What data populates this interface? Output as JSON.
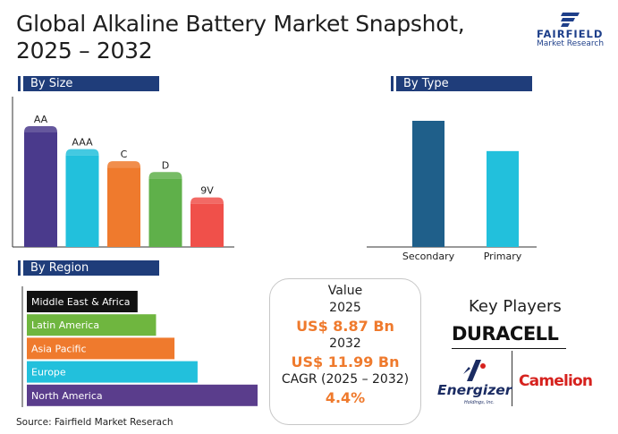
{
  "header": {
    "title_line1": "Global Alkaline Battery Market Snapshot,",
    "title_line2": "2025 – 2032"
  },
  "logo": {
    "name": "FAIRFIELD",
    "sub": "Market Research",
    "color": "#1e3f8a"
  },
  "sections": {
    "by_size": "By Size",
    "by_type": "By Type",
    "by_region": "By Region"
  },
  "chart_data": [
    {
      "type": "bar",
      "title": "By Size",
      "categories": [
        "AA",
        "AAA",
        "C",
        "D",
        "9V"
      ],
      "values": [
        100,
        81,
        71,
        62,
        41
      ],
      "colors": [
        "#4a3a8c",
        "#22c0dc",
        "#ef7a2d",
        "#5fb04a",
        "#f0504a"
      ],
      "ylim": [
        0,
        100
      ],
      "grid": false,
      "legend": "none"
    },
    {
      "type": "bar",
      "title": "By Type",
      "categories": [
        "Secondary",
        "Primary"
      ],
      "values": [
        100,
        76
      ],
      "colors": [
        "#1f5f8a",
        "#22c0dc"
      ],
      "ylim": [
        0,
        100
      ],
      "grid": false,
      "legend": "none"
    },
    {
      "type": "bar",
      "orientation": "horizontal",
      "title": "By Region",
      "categories": [
        "Middle East & Africa",
        "Latin America",
        "Asia Pacific",
        "Europe",
        "North America"
      ],
      "values": [
        48,
        56,
        64,
        74,
        100
      ],
      "colors": [
        "#111111",
        "#6fb63f",
        "#ef7a2d",
        "#22c0dc",
        "#5a3d8c"
      ],
      "xlim": [
        0,
        100
      ],
      "grid": false,
      "legend": "none"
    }
  ],
  "value_box": {
    "label": "Value",
    "year_start": "2025",
    "value_start": "US$ 8.87 Bn",
    "year_end": "2032",
    "value_end": "US$ 11.99 Bn",
    "cagr_label": "CAGR (2025 – 2032)",
    "cagr_value": "4.4%",
    "accent": "#ef7a2d"
  },
  "key_players": {
    "title": "Key Players",
    "duracell": "DURACELL",
    "energizer": "Energizer",
    "energizer_sub": "Holdings, Inc.",
    "camelion": "Camelion"
  },
  "source": "Source: Fairfield Market Reserach"
}
